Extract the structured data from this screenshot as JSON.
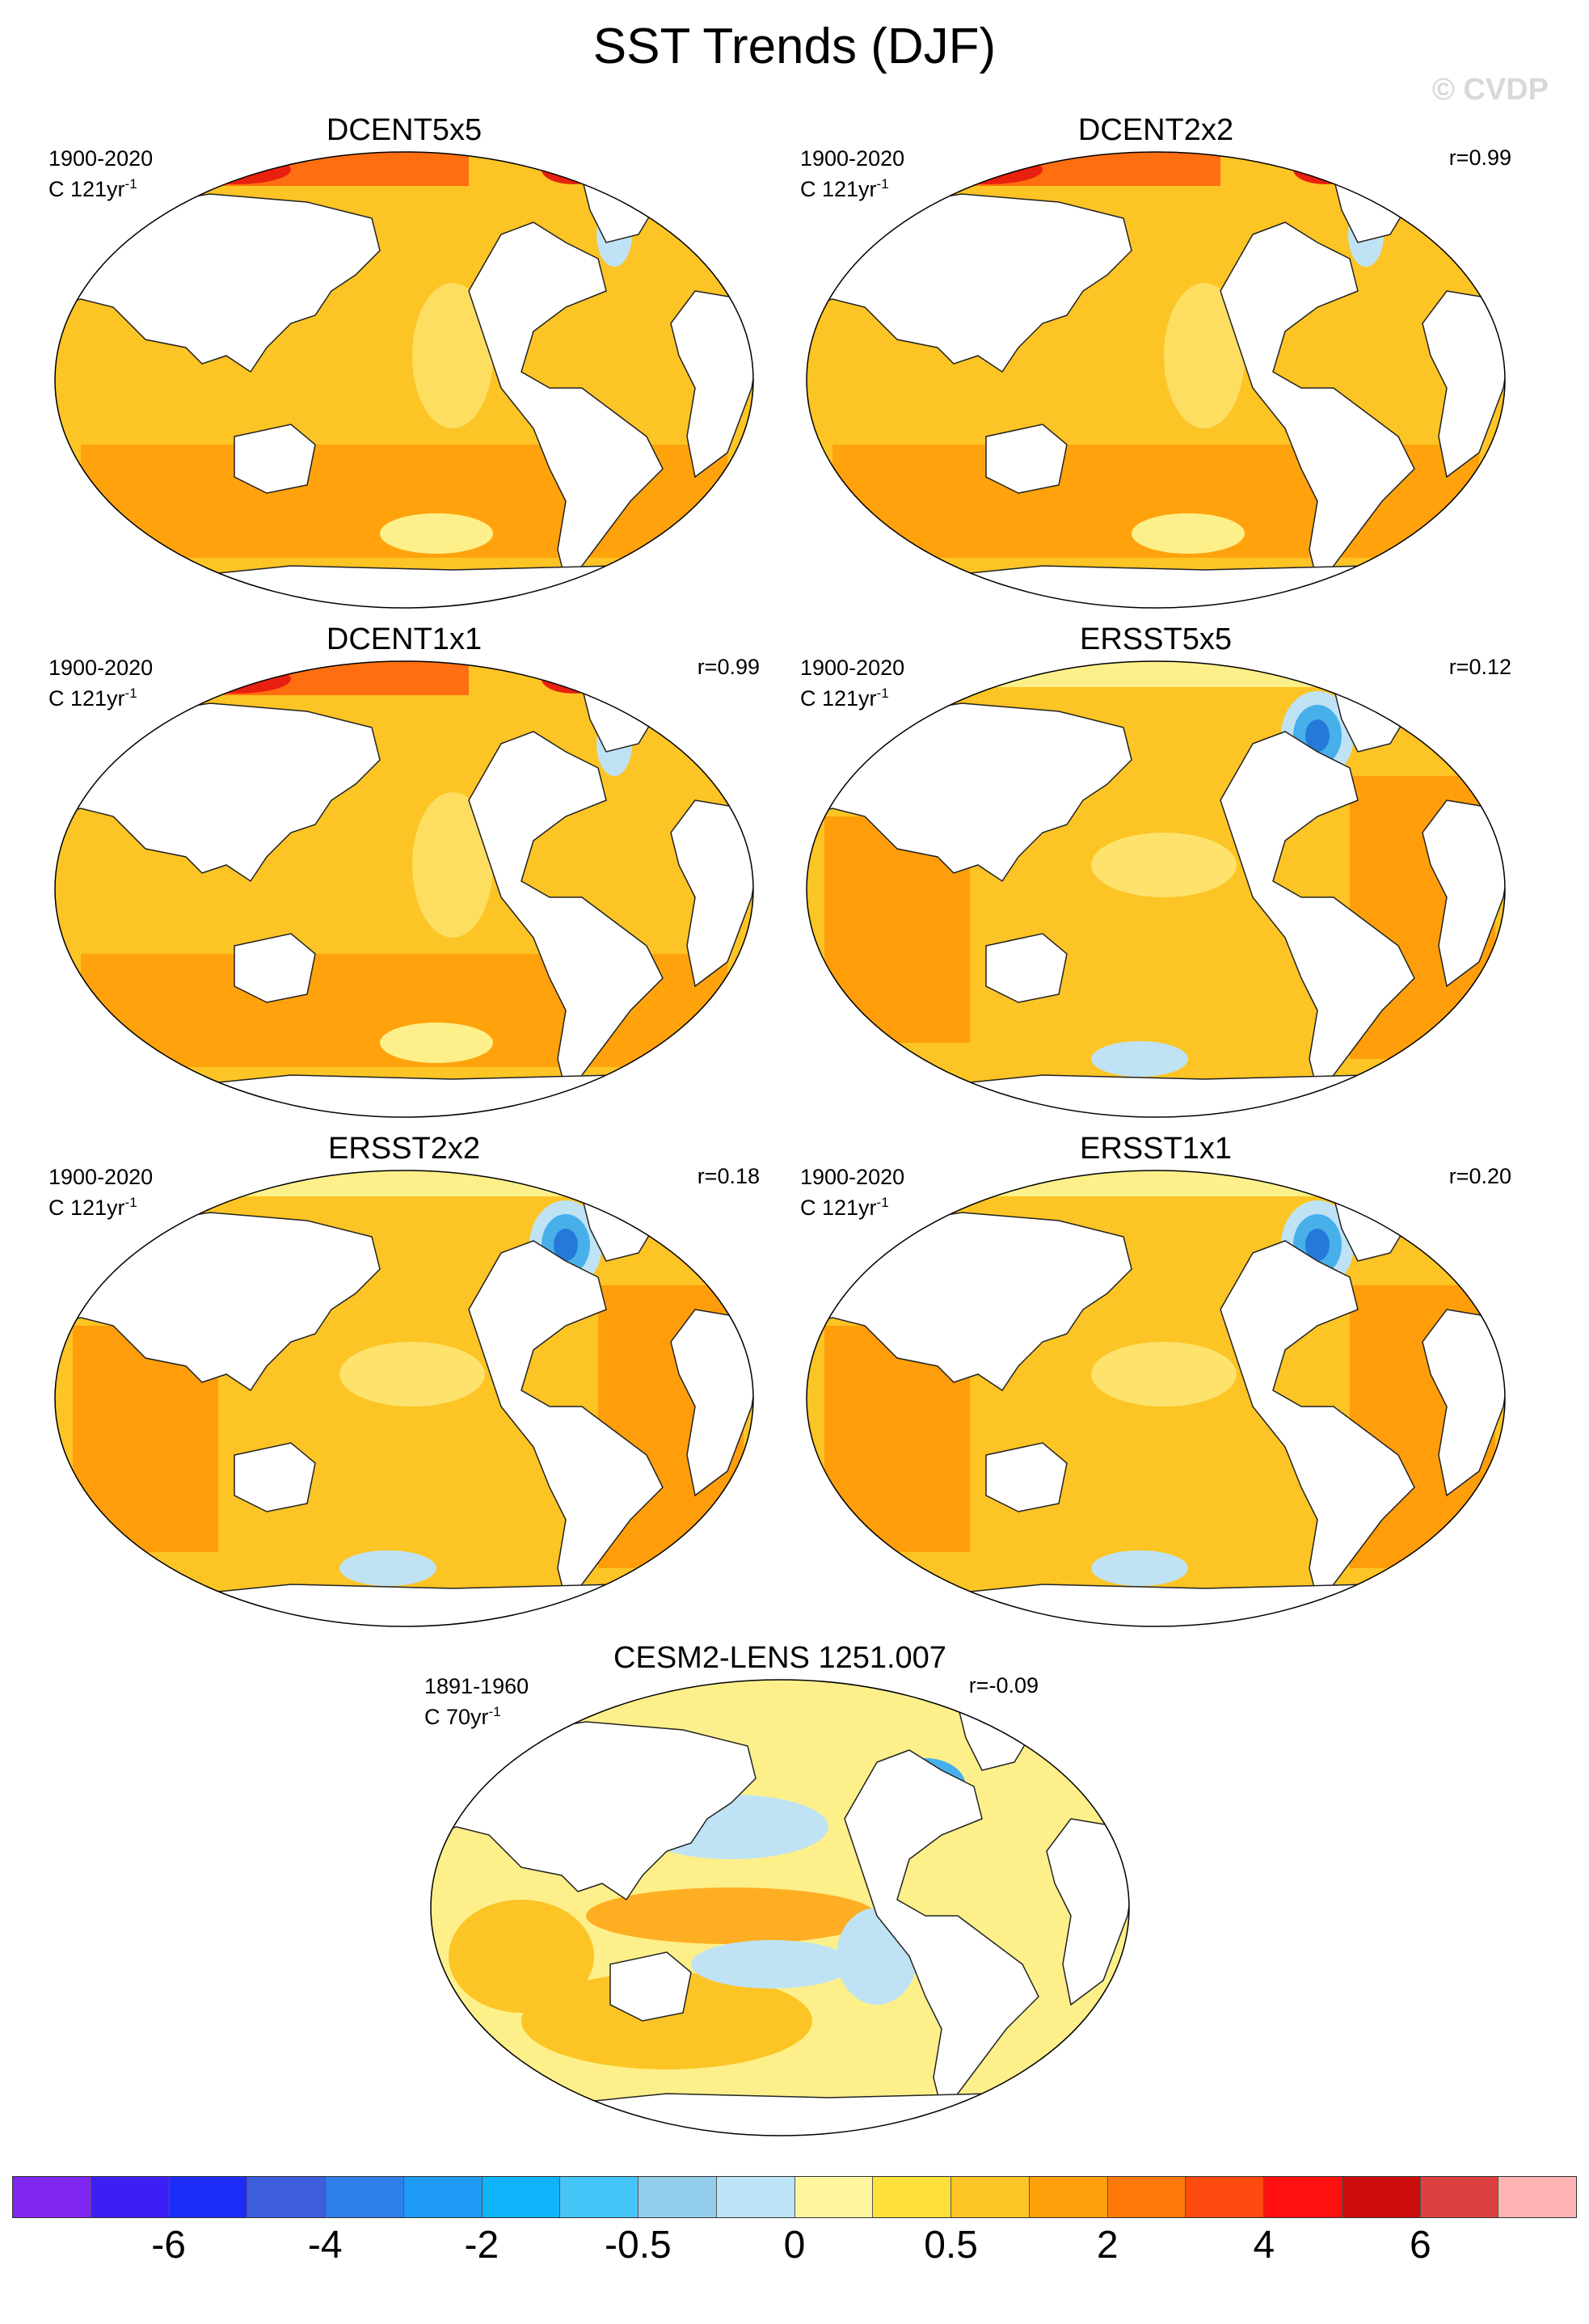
{
  "title": "SST Trends (DJF)",
  "watermark": "© CVDP",
  "colors": {
    "ocean_main": "#fcc425",
    "ocean_warm": "#ff9e0a",
    "ocean_hot": "#ff6e10",
    "ocean_very_hot": "#e82010",
    "ocean_light": "#fdf08a",
    "ocean_cool": "#bfe3f4",
    "ocean_cold": "#47b0ea",
    "ocean_colder": "#2679d9",
    "land": "#ffffff"
  },
  "chart_data": [
    {
      "type": "heatmap",
      "title": "DCENT5x5",
      "period": "1900-2020",
      "units": "C 121yr",
      "units_exp": "-1",
      "corr": "",
      "style": "dcent"
    },
    {
      "type": "heatmap",
      "title": "DCENT2x2",
      "period": "1900-2020",
      "units": "C 121yr",
      "units_exp": "-1",
      "corr": "r=0.99",
      "style": "dcent"
    },
    {
      "type": "heatmap",
      "title": "DCENT1x1",
      "period": "1900-2020",
      "units": "C 121yr",
      "units_exp": "-1",
      "corr": "r=0.99",
      "style": "dcent"
    },
    {
      "type": "heatmap",
      "title": "ERSST5x5",
      "period": "1900-2020",
      "units": "C 121yr",
      "units_exp": "-1",
      "corr": "r=0.12",
      "style": "ersst"
    },
    {
      "type": "heatmap",
      "title": "ERSST2x2",
      "period": "1900-2020",
      "units": "C 121yr",
      "units_exp": "-1",
      "corr": "r=0.18",
      "style": "ersst"
    },
    {
      "type": "heatmap",
      "title": "ERSST1x1",
      "period": "1900-2020",
      "units": "C 121yr",
      "units_exp": "-1",
      "corr": "r=0.20",
      "style": "ersst"
    },
    {
      "type": "heatmap",
      "title": "CESM2-LENS 1251.007",
      "period": "1891-1960",
      "units": "C 70yr",
      "units_exp": "-1",
      "corr": "r=-0.09",
      "style": "cesm"
    }
  ],
  "colorbar": {
    "colors": [
      "#7f26f0",
      "#3c1ff5",
      "#1a2cf5",
      "#3d5fdb",
      "#2f7fe8",
      "#1f9af5",
      "#0fb4fa",
      "#45c4f8",
      "#92cdeb",
      "#bde3f6",
      "#fff7a0",
      "#fde13a",
      "#fcc425",
      "#ffa00a",
      "#ff7a0a",
      "#ff4a10",
      "#ff1010",
      "#cc0c0c",
      "#dd4040",
      "#ffb4b4"
    ],
    "tick_labels": [
      "-6",
      "-4",
      "-2",
      "-0.5",
      "0",
      "0.5",
      "2",
      "4",
      "6"
    ]
  }
}
